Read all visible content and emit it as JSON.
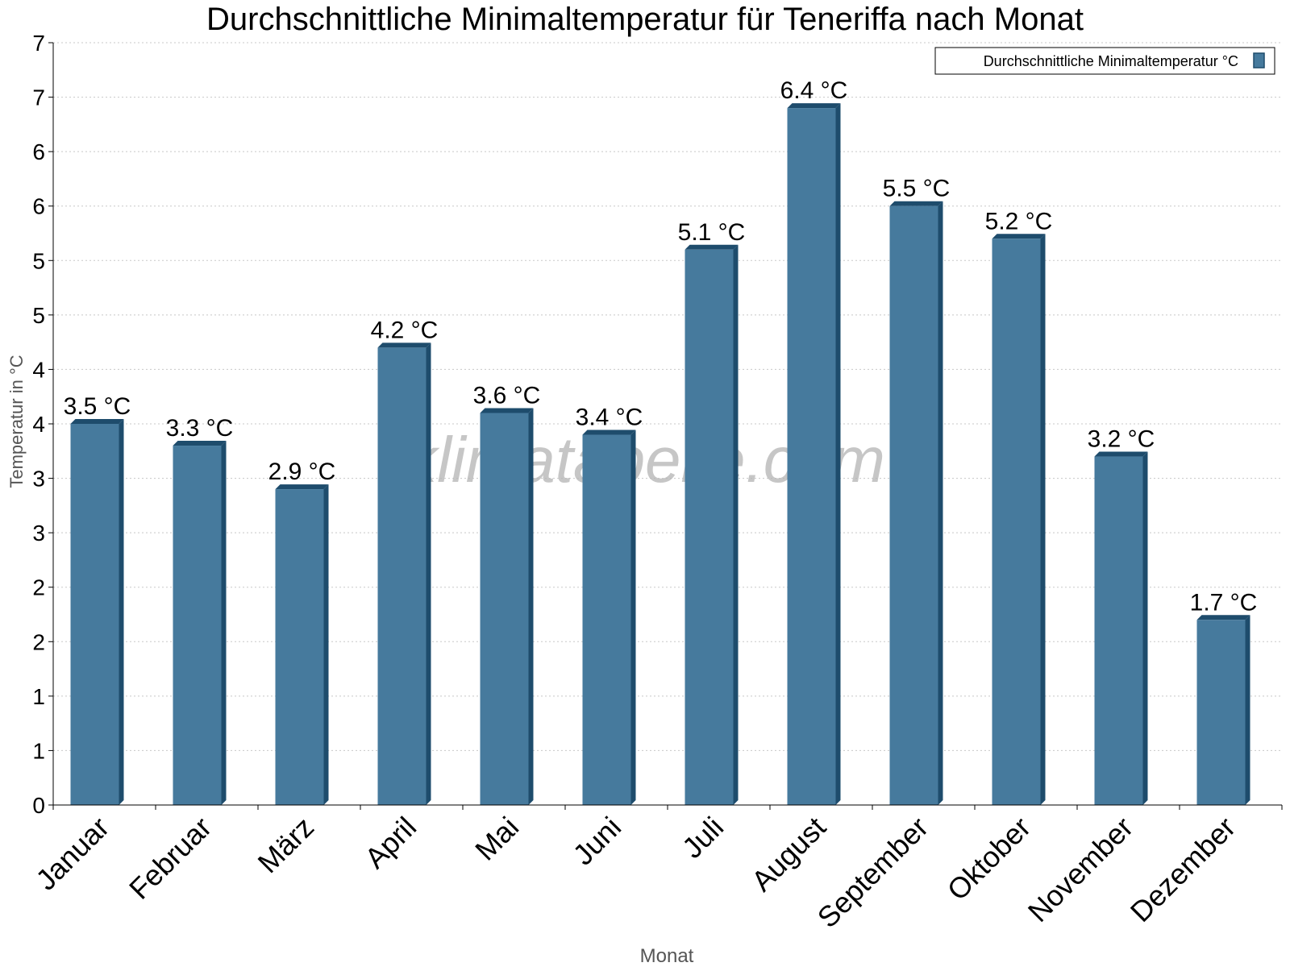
{
  "chart_data": {
    "type": "bar",
    "title": "Durchschnittliche Minimaltemperatur für Teneriffa nach Monat",
    "xlabel": "Monat",
    "ylabel": "Temperatur in °C",
    "ylim": [
      0,
      7
    ],
    "y_tick_labels": [
      "0",
      "1",
      "1",
      "2",
      "2",
      "3",
      "3",
      "4",
      "4",
      "5",
      "5",
      "6",
      "6",
      "7",
      "7"
    ],
    "categories": [
      "Januar",
      "Februar",
      "März",
      "April",
      "Mai",
      "Juni",
      "Juli",
      "August",
      "September",
      "Oktober",
      "November",
      "Dezember"
    ],
    "series": [
      {
        "name": "Durchschnittliche Minimaltemperatur °C",
        "values": [
          3.5,
          3.3,
          2.9,
          4.2,
          3.6,
          3.4,
          5.1,
          6.4,
          5.5,
          5.2,
          3.2,
          1.7
        ],
        "labels": [
          "3.5 °C",
          "3.3 °C",
          "2.9 °C",
          "4.2 °C",
          "3.6 °C",
          "3.4 °C",
          "5.1 °C",
          "6.4 °C",
          "5.5 °C",
          "5.2 °C",
          "3.2 °C",
          "1.7 °C"
        ]
      }
    ],
    "grid": true,
    "legend_position": "top-right",
    "watermark": "klimatabelle.com",
    "colors": {
      "bar": "#467a9d",
      "bar_side": "#1e4c6c",
      "bar_top": "#1e4c6c",
      "grid": "#c8c8c8",
      "axis": "#000000"
    }
  }
}
